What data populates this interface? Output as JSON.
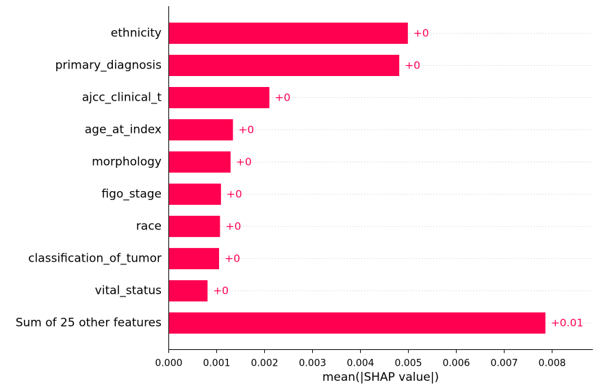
{
  "chart_data": {
    "type": "bar",
    "orientation": "horizontal",
    "categories": [
      "ethnicity",
      "primary_diagnosis",
      "ajcc_clinical_t",
      "age_at_index",
      "morphology",
      "figo_stage",
      "race",
      "classification_of_tumor",
      "vital_status",
      "Sum of 25 other features"
    ],
    "values": [
      0.00499,
      0.00481,
      0.0021,
      0.00134,
      0.00129,
      0.00109,
      0.00107,
      0.00105,
      0.00081,
      0.00786
    ],
    "value_labels": [
      "+0",
      "+0",
      "+0",
      "+0",
      "+0",
      "+0",
      "+0",
      "+0",
      "+0",
      "+0.01"
    ],
    "xlabel": "mean(|SHAP value|)",
    "xlim": [
      0,
      0.00865
    ],
    "xticks": [
      0.0,
      0.001,
      0.002,
      0.003,
      0.004,
      0.005,
      0.006,
      0.007,
      0.008
    ],
    "xtick_labels": [
      "0.000",
      "0.001",
      "0.002",
      "0.003",
      "0.004",
      "0.005",
      "0.006",
      "0.007",
      "0.008"
    ],
    "grid": "dotted horizontal guide lines per row",
    "colors": {
      "bar": "#ff0051",
      "value_label": "#ff0051",
      "grid": "#cccccc",
      "axis": "#000000"
    }
  }
}
